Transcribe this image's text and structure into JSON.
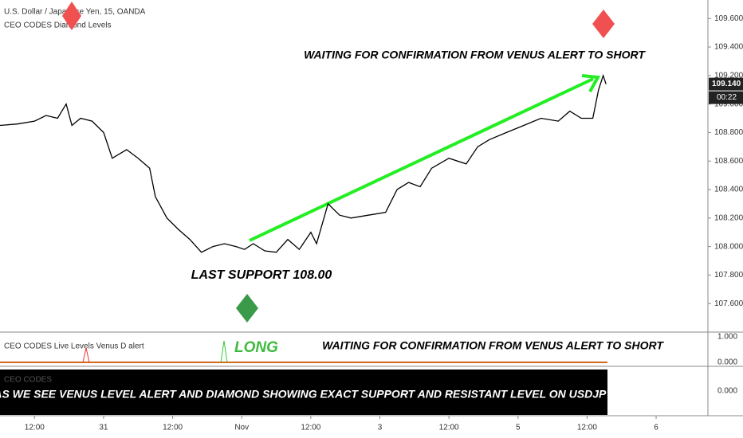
{
  "header": {
    "symbol": "U.S. Dollar / Japanese Yen, 15, OANDA",
    "indicator": "CEO CODES Diamond Levels"
  },
  "chart_data": {
    "type": "line",
    "color": "#000000",
    "x": [
      6,
      9,
      12,
      14,
      16,
      17.5,
      18.5,
      20,
      22,
      24,
      25.5,
      28,
      30,
      32,
      33,
      35,
      37,
      39,
      41,
      43,
      45,
      47,
      48.5,
      50,
      52,
      54,
      56,
      58,
      60,
      61,
      63,
      65,
      67,
      70,
      73,
      75,
      77,
      79,
      81,
      84,
      87,
      89,
      91,
      94,
      97,
      100,
      103,
      105,
      107,
      109,
      110,
      110.8,
      111.3
    ],
    "values": [
      108.85,
      108.86,
      108.88,
      108.92,
      108.9,
      109.0,
      108.85,
      108.9,
      108.88,
      108.8,
      108.62,
      108.68,
      108.62,
      108.55,
      108.35,
      108.2,
      108.12,
      108.05,
      107.96,
      108.0,
      108.02,
      108.0,
      107.98,
      108.02,
      107.97,
      107.96,
      108.05,
      107.98,
      108.1,
      108.02,
      108.3,
      108.22,
      108.2,
      108.22,
      108.24,
      108.4,
      108.45,
      108.42,
      108.55,
      108.62,
      108.58,
      108.7,
      108.75,
      108.8,
      108.85,
      108.9,
      108.88,
      108.95,
      108.9,
      108.9,
      109.1,
      109.2,
      109.14
    ],
    "xlim": [
      6,
      129
    ],
    "ylim": [
      107.4,
      109.73
    ],
    "xticks": [
      {
        "value": 12,
        "label": "12:00"
      },
      {
        "value": 24,
        "label": "31"
      },
      {
        "value": 36,
        "label": "12:00"
      },
      {
        "value": 48,
        "label": "Nov"
      },
      {
        "value": 60,
        "label": "12:00"
      },
      {
        "value": 72,
        "label": "3"
      },
      {
        "value": 84,
        "label": "12:00"
      },
      {
        "value": 96,
        "label": "5"
      },
      {
        "value": 108,
        "label": "12:00"
      },
      {
        "value": 120,
        "label": "6"
      }
    ],
    "yticks": [
      {
        "value": 107.6,
        "label": "107.600"
      },
      {
        "value": 107.8,
        "label": "107.800"
      },
      {
        "value": 108.0,
        "label": "108.000"
      },
      {
        "value": 108.2,
        "label": "108.200"
      },
      {
        "value": 108.4,
        "label": "108.400"
      },
      {
        "value": 108.6,
        "label": "108.600"
      },
      {
        "value": 108.8,
        "label": "108.800"
      },
      {
        "value": 109.0,
        "label": "109.000"
      },
      {
        "value": 109.2,
        "label": "109.200"
      },
      {
        "value": 109.4,
        "label": "109.400"
      },
      {
        "value": 109.6,
        "label": "109.600"
      }
    ],
    "last_price": {
      "value": 109.14,
      "label": "109.140"
    },
    "countdown": "00:22",
    "annotations": [
      "WAITING FOR CONFIRMATION FROM VENUS ALERT TO SHORT",
      "LAST SUPPORT 108.00"
    ]
  },
  "venus_panel": {
    "title": "CEO CODES Live Levels Venus D alert",
    "long": "LONG",
    "note": "WAITING FOR CONFIRMATION FROM VENUS ALERT TO SHORT",
    "ticks": [
      "1.000",
      "0.000"
    ]
  },
  "codes_panel": {
    "title": "CEO CODES",
    "banner": "AS WE SEE VENUS LEVEL ALERT AND DIAMOND SHOWING EXACT SUPPORT AND RESISTANT LEVEL ON USDJPY",
    "tick": "0.000"
  }
}
